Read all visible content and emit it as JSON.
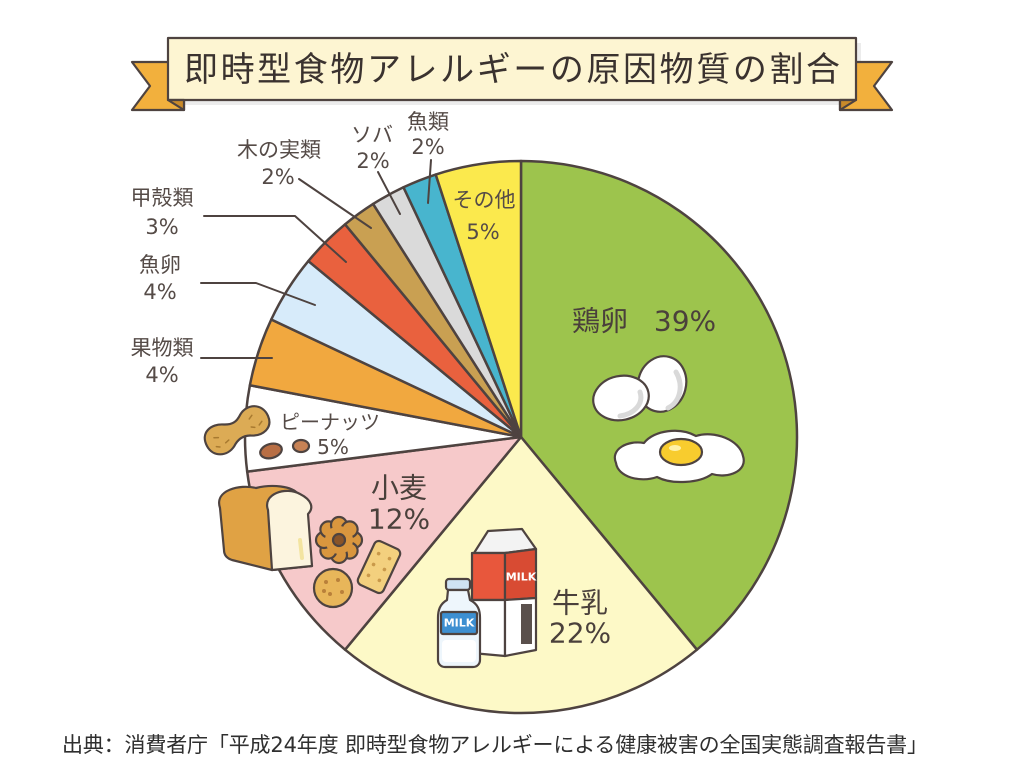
{
  "source": "出典：消費者庁「平成24年度 即時型食物アレルギーによる健康被害の全国実態調査報告書」",
  "chart_data": {
    "type": "pie",
    "title": "即時型食物アレルギーの原因物質の割合",
    "categories": [
      "鶏卵",
      "牛乳",
      "小麦",
      "ピーナッツ",
      "果物類",
      "魚卵",
      "甲殻類",
      "木の実類",
      "ソバ",
      "魚類",
      "その他"
    ],
    "values": [
      39,
      22,
      12,
      5,
      4,
      4,
      3,
      2,
      2,
      2,
      5
    ],
    "value_labels": [
      "39%",
      "22%",
      "12%",
      "5%",
      "4%",
      "4%",
      "3%",
      "2%",
      "2%",
      "2%",
      "5%"
    ],
    "colors": [
      "#9dc44d",
      "#fdf9c7",
      "#f6c9ca",
      "#ffffff",
      "#f1a83f",
      "#d7ebfa",
      "#e9613e",
      "#c9a052",
      "#dadada",
      "#48b5ce",
      "#fbe94d"
    ]
  },
  "illustrations": {
    "icons": [
      "eggs-illustration",
      "fried-egg-illustration",
      "milk-carton-illustration",
      "milk-bottle-illustration",
      "bread-loaf-illustration",
      "flower-cookie-illustration",
      "round-cookie-illustration",
      "cracker-illustration",
      "peanut-shell-illustration",
      "peanut-kernels-illustration"
    ],
    "milk_carton_text": "MILK",
    "milk_bottle_text": "MILK"
  }
}
